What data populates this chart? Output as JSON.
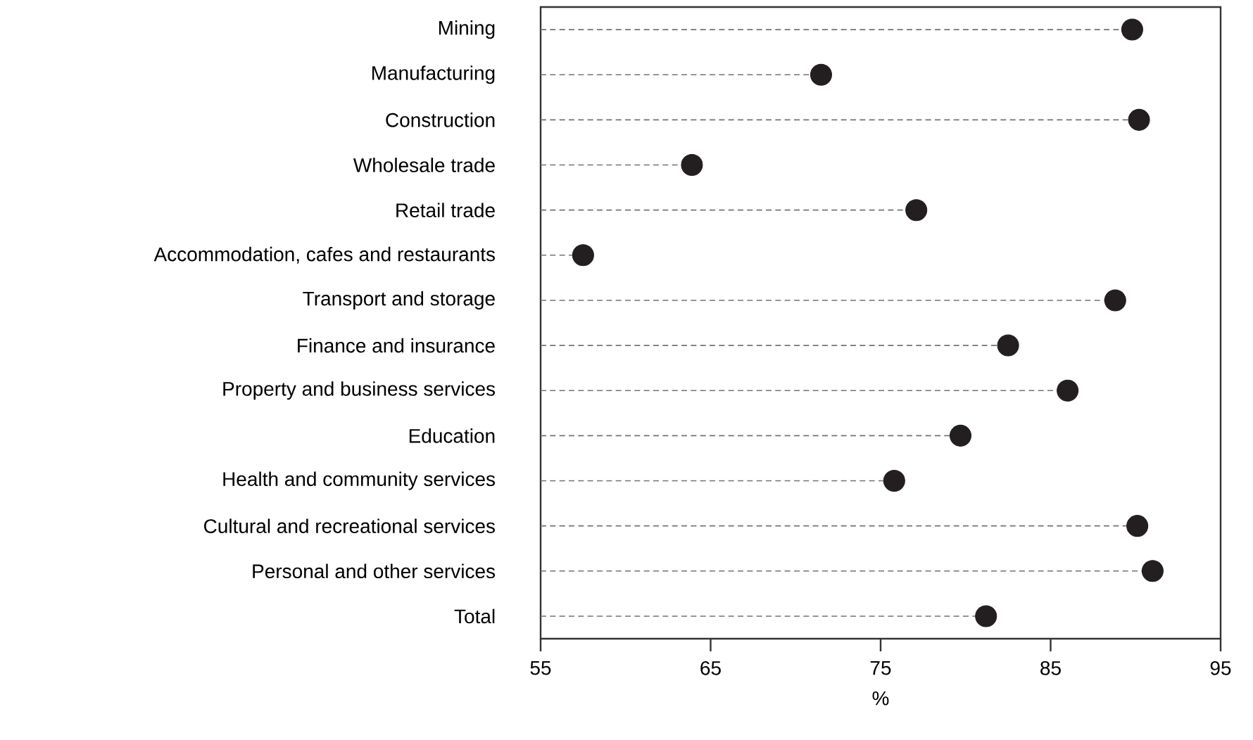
{
  "chart_data": {
    "type": "lollipop",
    "orientation": "horizontal",
    "xlabel": "%",
    "categories": [
      "Mining",
      "Manufacturing",
      "Construction",
      "Wholesale trade",
      "Retail trade",
      "Accommodation, cafes and restaurants",
      "Transport and storage",
      "Finance and insurance",
      "Property and business services",
      "Education",
      "Health and community services",
      "Cultural and recreational services",
      "Personal and other services",
      "Total"
    ],
    "values": [
      89.8,
      71.5,
      90.2,
      63.9,
      77.1,
      57.5,
      88.8,
      82.5,
      86.0,
      79.7,
      75.8,
      90.1,
      91.0,
      81.2
    ],
    "color": "#231f20",
    "marker": "circle",
    "line_style": "dashed",
    "xlim": [
      55,
      95
    ],
    "xticks": [
      55,
      65,
      75,
      85,
      95
    ]
  }
}
